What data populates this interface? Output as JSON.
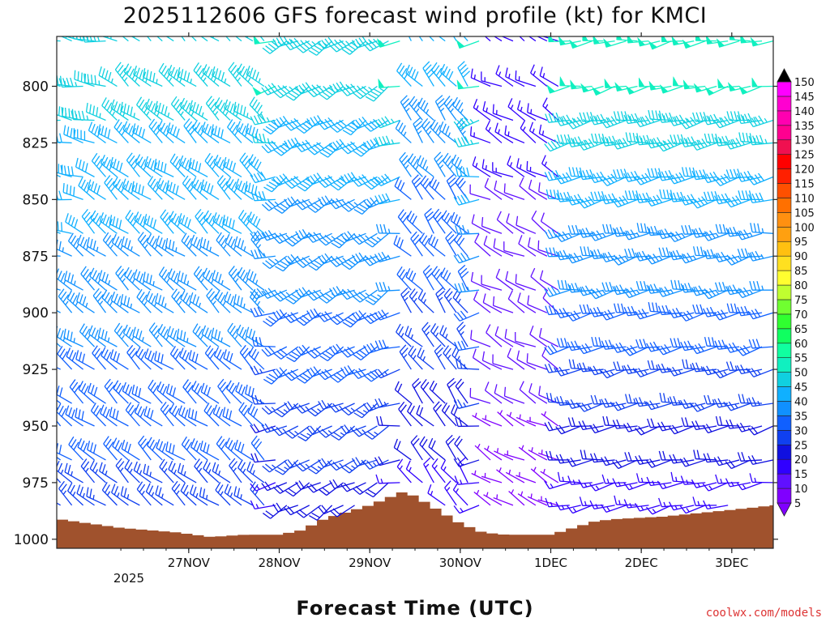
{
  "chart_data": {
    "type": "wind_barb_profile",
    "title": "2025112606 GFS forecast wind profile (kt) for KMCI",
    "xlabel": "Forecast Time (UTC)",
    "ylabel": "",
    "year_label": "2025",
    "credit": "coolwx.com/models",
    "y_ticks": [
      "800",
      "825",
      "850",
      "875",
      "900",
      "925",
      "950",
      "975",
      "1000"
    ],
    "y_range": [
      778,
      1004
    ],
    "x_ticks": [
      "27NOV",
      "28NOV",
      "29NOV",
      "30NOV",
      "1DEC",
      "2DEC",
      "3DEC"
    ],
    "x_range_hours": [
      -17,
      173
    ],
    "time_step_hours": 3,
    "pressure_levels": [
      780,
      800,
      815,
      825,
      840,
      850,
      865,
      875,
      890,
      900,
      915,
      925,
      940,
      950,
      965,
      975,
      985
    ],
    "surface_pressure": [
      {
        "t": -17,
        "p": 991
      },
      {
        "t": 0,
        "p": 995
      },
      {
        "t": 15,
        "p": 997
      },
      {
        "t": 24,
        "p": 999
      },
      {
        "t": 33,
        "p": 998
      },
      {
        "t": 42,
        "p": 998
      },
      {
        "t": 48,
        "p": 996
      },
      {
        "t": 54,
        "p": 991
      },
      {
        "t": 60,
        "p": 988
      },
      {
        "t": 66,
        "p": 985
      },
      {
        "t": 72,
        "p": 981
      },
      {
        "t": 75,
        "p": 979
      },
      {
        "t": 78,
        "p": 981
      },
      {
        "t": 84,
        "p": 987
      },
      {
        "t": 90,
        "p": 993
      },
      {
        "t": 96,
        "p": 997
      },
      {
        "t": 102,
        "p": 998
      },
      {
        "t": 114,
        "p": 998
      },
      {
        "t": 120,
        "p": 995
      },
      {
        "t": 126,
        "p": 992
      },
      {
        "t": 132,
        "p": 991
      },
      {
        "t": 144,
        "p": 990
      },
      {
        "t": 156,
        "p": 988
      },
      {
        "t": 168,
        "p": 986
      },
      {
        "t": 173,
        "p": 985
      }
    ],
    "wind_regimes": [
      {
        "t0": -17,
        "t1": 39,
        "dir": 310,
        "spd_low": 25,
        "spd_high": 45
      },
      {
        "t0": 42,
        "t1": 72,
        "dir": 240,
        "spd_low": 20,
        "spd_high": 45
      },
      {
        "t0": 75,
        "t1": 93,
        "dir": 320,
        "spd_low": 15,
        "spd_high": 40
      },
      {
        "t0": 96,
        "t1": 117,
        "dir": 300,
        "spd_low": 5,
        "spd_high": 15
      },
      {
        "t0": 120,
        "t1": 173,
        "dir": 260,
        "spd_low": 15,
        "spd_high": 50
      }
    ],
    "colorbar": {
      "labels": [
        "5",
        "10",
        "15",
        "20",
        "25",
        "30",
        "35",
        "40",
        "45",
        "50",
        "55",
        "60",
        "65",
        "70",
        "75",
        "80",
        "85",
        "90",
        "95",
        "100",
        "105",
        "110",
        "115",
        "120",
        "125",
        "130",
        "135",
        "140",
        "145",
        "150"
      ],
      "colors": [
        "#8000ff",
        "#6010ff",
        "#3000ff",
        "#1010e0",
        "#1040f0",
        "#1060ff",
        "#1090ff",
        "#10b0ff",
        "#10d0e0",
        "#10f0c0",
        "#10ffa0",
        "#10ff60",
        "#30ff30",
        "#70ff30",
        "#c0ff30",
        "#ffff30",
        "#ffe020",
        "#ffc010",
        "#ffa010",
        "#ff9010",
        "#ff7000",
        "#ff5000",
        "#ff2000",
        "#ff0000",
        "#f01050",
        "#ff0090",
        "#ff00b0",
        "#ff00d0",
        "#ff00ff"
      ]
    },
    "ground_color": "#a0522d"
  }
}
